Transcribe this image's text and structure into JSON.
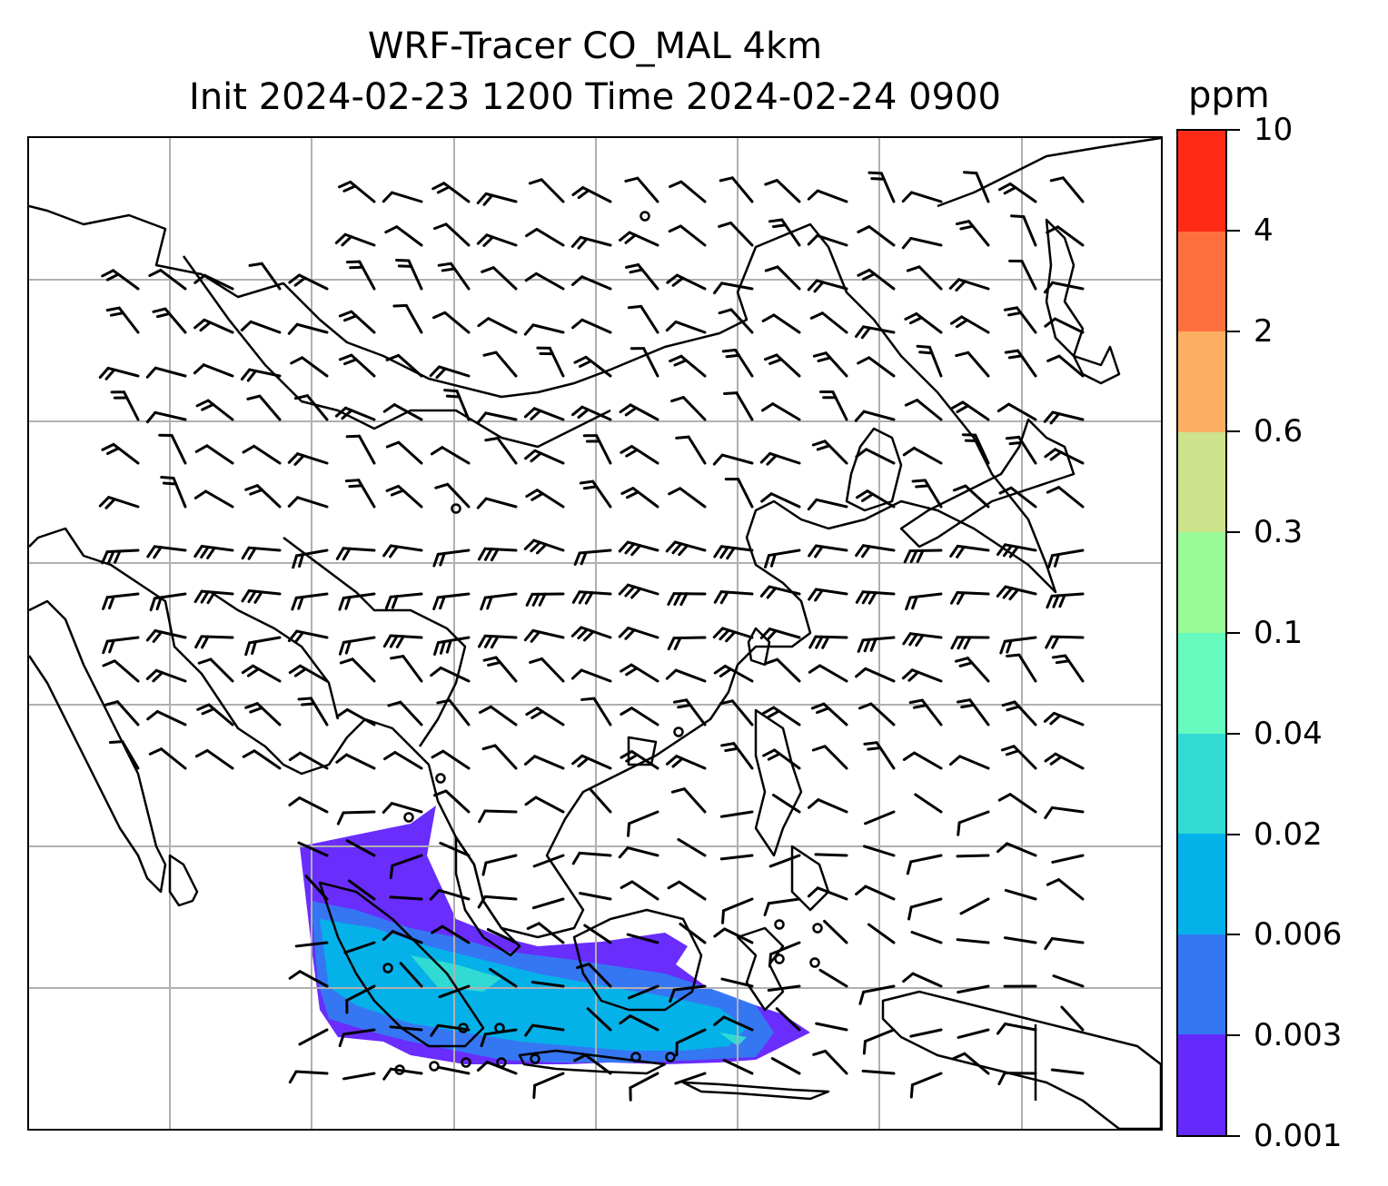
{
  "title": {
    "line1": "WRF-Tracer CO_MAL 4km",
    "line2": "Init 2024-02-23 1200 Time 2024-02-24 0900"
  },
  "colorbar": {
    "unit": "ppm",
    "levels": [
      "0.001",
      "0.003",
      "0.006",
      "0.02",
      "0.04",
      "0.1",
      "0.3",
      "0.6",
      "2",
      "4",
      "10"
    ],
    "colors": [
      "#6629fc",
      "#3477f3",
      "#04b2e9",
      "#32dbd3",
      "#65fbbf",
      "#99fb98",
      "#cde38c",
      "#fdb064",
      "#ff7040",
      "#ff2b17"
    ]
  },
  "map": {
    "gridlines": true,
    "grid_color": "#b0b0b0",
    "coastline_color": "#000000",
    "wind_barbs": true,
    "tracer_plume_region": "southern Malaysia / Sumatra / Java Sea"
  }
}
